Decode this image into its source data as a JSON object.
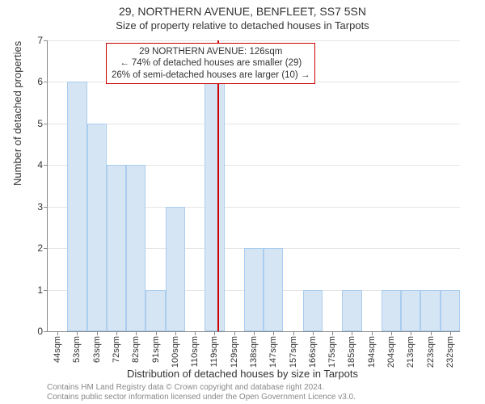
{
  "header": {
    "address": "29, NORTHERN AVENUE, BENFLEET, SS7 5SN",
    "subtitle": "Size of property relative to detached houses in Tarpots"
  },
  "chart": {
    "type": "histogram",
    "ylabel": "Number of detached properties",
    "xlabel": "Distribution of detached houses by size in Tarpots",
    "ylim": [
      0,
      7
    ],
    "ytick_step": 1,
    "grid_color": "#e5e5e5",
    "bar_fill": "#d6e5f4",
    "bar_border": "#aacdee",
    "background_color": "#ffffff",
    "axis_color": "#888888",
    "marker_line_color": "#cc0000",
    "marker_x_value": 126,
    "x_start": 44,
    "x_step": 9.5,
    "categories": [
      "44sqm",
      "53sqm",
      "63sqm",
      "72sqm",
      "82sqm",
      "91sqm",
      "100sqm",
      "110sqm",
      "119sqm",
      "129sqm",
      "138sqm",
      "147sqm",
      "157sqm",
      "166sqm",
      "175sqm",
      "185sqm",
      "194sqm",
      "204sqm",
      "213sqm",
      "223sqm",
      "232sqm"
    ],
    "values": [
      0,
      6,
      5,
      4,
      4,
      1,
      3,
      0,
      6,
      0,
      2,
      2,
      0,
      1,
      0,
      1,
      0,
      1,
      1,
      1,
      1
    ],
    "label_fontsize": 13,
    "tick_fontsize": 12
  },
  "annotation": {
    "line1": "29 NORTHERN AVENUE: 126sqm",
    "line2": "← 74% of detached houses are smaller (29)",
    "line3": "26% of semi-detached houses are larger (10) →",
    "border_color": "#cc0000",
    "background_color": "#ffffff"
  },
  "footer": {
    "line1": "Contains HM Land Registry data © Crown copyright and database right 2024.",
    "line2": "Contains public sector information licensed under the Open Government Licence v3.0."
  }
}
